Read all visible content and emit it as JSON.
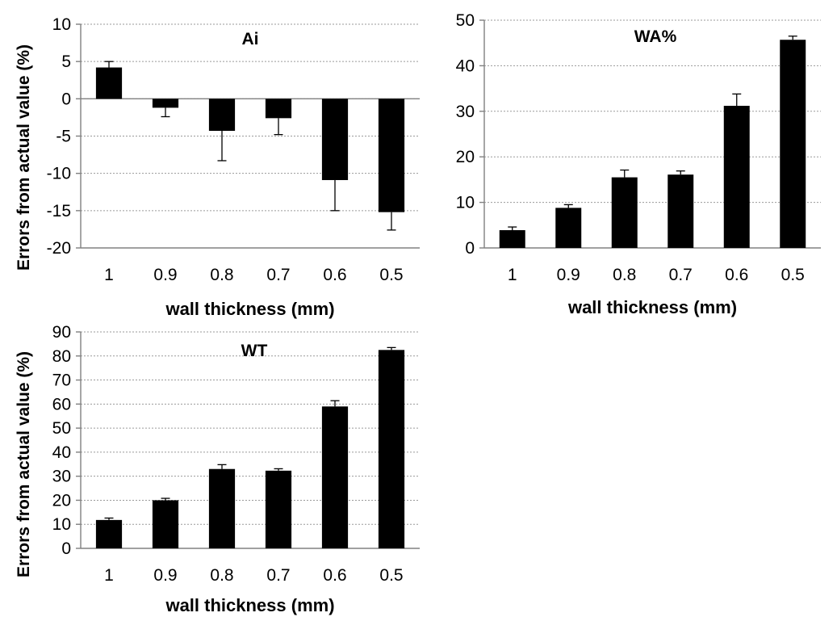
{
  "figure": {
    "ylabel": "Errors from actual value (%)"
  },
  "chart_data": [
    {
      "type": "bar",
      "title": "Ai",
      "xlabel": "wall thickness (mm)",
      "categories": [
        "1",
        "0.9",
        "0.8",
        "0.7",
        "0.6",
        "0.5"
      ],
      "values": [
        4.2,
        -1.2,
        -4.3,
        -2.6,
        -10.9,
        -15.2
      ],
      "errors": [
        0.8,
        1.2,
        4.0,
        2.2,
        4.1,
        2.4
      ],
      "ylim": [
        -20,
        10
      ],
      "yticks": [
        -20,
        -15,
        -10,
        -5,
        0,
        5,
        10
      ],
      "grid": true
    },
    {
      "type": "bar",
      "title": "WA%",
      "xlabel": "wall thickness (mm)",
      "categories": [
        "1",
        "0.9",
        "0.8",
        "0.7",
        "0.6",
        "0.5"
      ],
      "values": [
        3.9,
        8.8,
        15.5,
        16.1,
        31.2,
        45.7
      ],
      "errors": [
        0.7,
        0.7,
        1.6,
        0.8,
        2.6,
        0.8
      ],
      "ylim": [
        0,
        50
      ],
      "yticks": [
        0,
        10,
        20,
        30,
        40,
        50
      ],
      "grid": true
    },
    {
      "type": "bar",
      "title": "WT",
      "xlabel": "wall thickness (mm)",
      "categories": [
        "1",
        "0.9",
        "0.8",
        "0.7",
        "0.6",
        "0.5"
      ],
      "values": [
        11.8,
        20.0,
        33.0,
        32.3,
        59.0,
        82.5
      ],
      "errors": [
        0.8,
        0.8,
        1.8,
        0.8,
        2.4,
        1.0
      ],
      "ylim": [
        0,
        90
      ],
      "yticks": [
        0,
        10,
        20,
        30,
        40,
        50,
        60,
        70,
        80,
        90
      ],
      "grid": true
    }
  ]
}
